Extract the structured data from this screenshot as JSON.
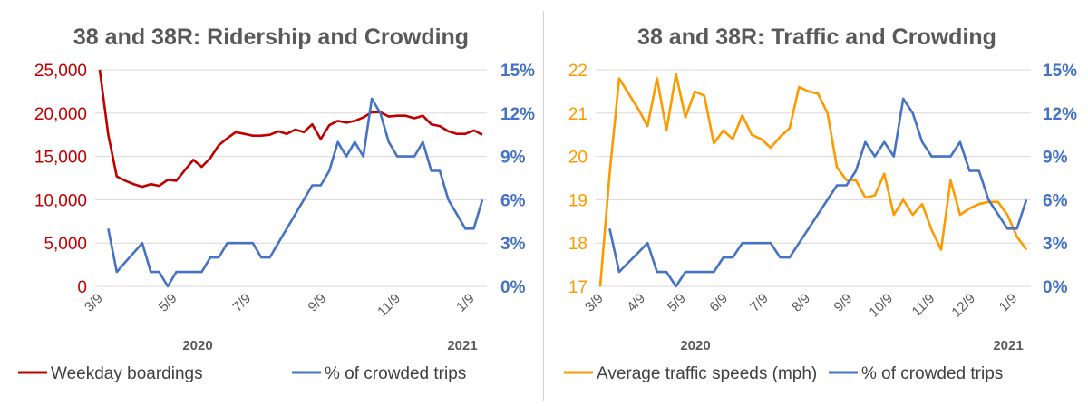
{
  "chart_data": [
    {
      "type": "line",
      "title": "38 and 38R: Ridership and Crowding",
      "x": [
        "2020-03-09",
        "2020-03-16",
        "2020-03-23",
        "2020-03-30",
        "2020-04-06",
        "2020-04-13",
        "2020-04-20",
        "2020-04-27",
        "2020-05-04",
        "2020-05-11",
        "2020-05-18",
        "2020-05-25",
        "2020-06-01",
        "2020-06-08",
        "2020-06-15",
        "2020-06-22",
        "2020-06-29",
        "2020-07-06",
        "2020-07-13",
        "2020-07-20",
        "2020-07-27",
        "2020-08-03",
        "2020-08-10",
        "2020-08-17",
        "2020-08-24",
        "2020-08-31",
        "2020-09-07",
        "2020-09-14",
        "2020-09-21",
        "2020-09-28",
        "2020-10-05",
        "2020-10-12",
        "2020-10-19",
        "2020-10-26",
        "2020-11-02",
        "2020-11-09",
        "2020-11-16",
        "2020-11-23",
        "2020-11-30",
        "2020-12-07",
        "2020-12-14",
        "2020-12-21",
        "2020-12-28",
        "2021-01-04",
        "2021-01-11",
        "2021-01-18"
      ],
      "xticks": [
        {
          "date": "2020-03-09",
          "label": "3/9"
        },
        {
          "date": "2020-05-09",
          "label": "5/9"
        },
        {
          "date": "2020-07-09",
          "label": "7/9"
        },
        {
          "date": "2020-09-09",
          "label": "9/9"
        },
        {
          "date": "2020-11-09",
          "label": "11/9"
        },
        {
          "date": "2021-01-09",
          "label": "1/9"
        }
      ],
      "year_labels": [
        "2020",
        "2021"
      ],
      "y_left": {
        "range": [
          0,
          25000
        ],
        "ticks": [
          0,
          5000,
          10000,
          15000,
          20000,
          25000
        ],
        "tick_labels": [
          "0",
          "5,000",
          "10,000",
          "15,000",
          "20,000",
          "25,000"
        ],
        "color": "#C00000"
      },
      "y_right": {
        "range": [
          0,
          15
        ],
        "ticks": [
          0,
          3,
          6,
          9,
          12,
          15
        ],
        "tick_labels": [
          "0%",
          "3%",
          "6%",
          "9%",
          "12%",
          "15%"
        ],
        "color": "#4472C4"
      },
      "grid": true,
      "legend_position": "bottom",
      "series": [
        {
          "name": "Weekday boardings",
          "axis": "left",
          "color": "#C00000",
          "values": [
            25000,
            17500,
            12700,
            12200,
            11800,
            11500,
            11800,
            11600,
            12300,
            12200,
            13400,
            14600,
            13800,
            14800,
            16300,
            17100,
            17800,
            17600,
            17400,
            17400,
            17500,
            17900,
            17600,
            18100,
            17800,
            18700,
            17000,
            18600,
            19100,
            18900,
            19100,
            19500,
            20100,
            20100,
            19600,
            19700,
            19700,
            19400,
            19700,
            18700,
            18500,
            17900,
            17600,
            17600,
            18000,
            17500
          ]
        },
        {
          "name": "% of crowded trips",
          "axis": "right",
          "color": "#4472C4",
          "values": [
            null,
            4,
            1,
            1.67,
            2.33,
            3,
            1,
            1,
            0,
            1,
            1,
            1,
            1,
            2,
            2,
            3,
            3,
            3,
            3,
            2,
            2,
            3,
            4,
            5,
            6,
            7,
            7,
            8,
            10,
            9,
            10,
            9,
            13,
            12,
            10,
            9,
            9,
            9,
            10,
            8,
            8,
            6,
            5,
            4,
            4,
            6
          ]
        }
      ]
    },
    {
      "type": "line",
      "title": "38 and 38R: Traffic and Crowding",
      "x": [
        "2020-03-09",
        "2020-03-16",
        "2020-03-23",
        "2020-03-30",
        "2020-04-06",
        "2020-04-13",
        "2020-04-20",
        "2020-04-27",
        "2020-05-04",
        "2020-05-11",
        "2020-05-18",
        "2020-05-25",
        "2020-06-01",
        "2020-06-08",
        "2020-06-15",
        "2020-06-22",
        "2020-06-29",
        "2020-07-06",
        "2020-07-13",
        "2020-07-20",
        "2020-07-27",
        "2020-08-03",
        "2020-08-10",
        "2020-08-17",
        "2020-08-24",
        "2020-08-31",
        "2020-09-07",
        "2020-09-14",
        "2020-09-21",
        "2020-09-28",
        "2020-10-05",
        "2020-10-12",
        "2020-10-19",
        "2020-10-26",
        "2020-11-02",
        "2020-11-09",
        "2020-11-16",
        "2020-11-23",
        "2020-11-30",
        "2020-12-07",
        "2020-12-14",
        "2020-12-21",
        "2020-12-28",
        "2021-01-04",
        "2021-01-11",
        "2021-01-18"
      ],
      "xticks": [
        {
          "date": "2020-03-09",
          "label": "3/9"
        },
        {
          "date": "2020-04-09",
          "label": "4/9"
        },
        {
          "date": "2020-05-09",
          "label": "5/9"
        },
        {
          "date": "2020-06-09",
          "label": "6/9"
        },
        {
          "date": "2020-07-09",
          "label": "7/9"
        },
        {
          "date": "2020-08-09",
          "label": "8/9"
        },
        {
          "date": "2020-09-09",
          "label": "9/9"
        },
        {
          "date": "2020-10-09",
          "label": "10/9"
        },
        {
          "date": "2020-11-09",
          "label": "11/9"
        },
        {
          "date": "2020-12-09",
          "label": "12/9"
        },
        {
          "date": "2021-01-09",
          "label": "1/9"
        }
      ],
      "year_labels": [
        "2020",
        "2021"
      ],
      "y_left": {
        "range": [
          17,
          22
        ],
        "ticks": [
          17,
          18,
          19,
          20,
          21,
          22
        ],
        "tick_labels": [
          "17",
          "18",
          "19",
          "20",
          "21",
          "22"
        ],
        "color": "#FF9900"
      },
      "y_right": {
        "range": [
          0,
          15
        ],
        "ticks": [
          0,
          3,
          6,
          9,
          12,
          15
        ],
        "tick_labels": [
          "0%",
          "3%",
          "6%",
          "9%",
          "12%",
          "15%"
        ],
        "color": "#4472C4"
      },
      "grid": true,
      "legend_position": "bottom",
      "series": [
        {
          "name": "Average traffic speeds (mph)",
          "axis": "left",
          "color": "#FF9900",
          "values": [
            17,
            19.6,
            21.8,
            21.45,
            21.1,
            20.7,
            21.8,
            20.6,
            21.9,
            20.9,
            21.5,
            21.4,
            20.3,
            20.6,
            20.4,
            20.95,
            20.5,
            20.4,
            20.2,
            20.45,
            20.65,
            21.6,
            21.5,
            21.45,
            21.0,
            19.75,
            19.45,
            19.45,
            19.05,
            19.1,
            19.6,
            18.65,
            19.0,
            18.65,
            18.9,
            18.3,
            17.85,
            19.45,
            18.65,
            18.8,
            18.9,
            18.95,
            18.95,
            18.65,
            18.15,
            17.85
          ]
        },
        {
          "name": "% of crowded trips",
          "axis": "right",
          "color": "#4472C4",
          "values": [
            null,
            4,
            1,
            1.67,
            2.33,
            3,
            1,
            1,
            0,
            1,
            1,
            1,
            1,
            2,
            2,
            3,
            3,
            3,
            3,
            2,
            2,
            3,
            4,
            5,
            6,
            7,
            7,
            8,
            10,
            9,
            10,
            9,
            13,
            12,
            10,
            9,
            9,
            9,
            10,
            8,
            8,
            6,
            5,
            4,
            4,
            6
          ]
        }
      ]
    }
  ]
}
